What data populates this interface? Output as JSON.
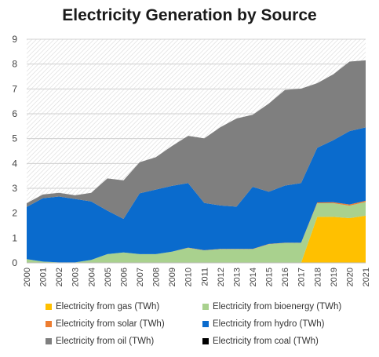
{
  "chart_data": {
    "type": "area",
    "stacked": true,
    "title": "Electricity Generation by Source",
    "xlabel": "",
    "ylabel": "",
    "ylim": [
      0,
      9
    ],
    "yticks": [
      "0",
      "1",
      "2",
      "3",
      "4",
      "5",
      "6",
      "7",
      "8",
      "9"
    ],
    "categories": [
      "2000",
      "2001",
      "2002",
      "2003",
      "2004",
      "2005",
      "2006",
      "2007",
      "2008",
      "2009",
      "2010",
      "2011",
      "2012",
      "2013",
      "2014",
      "2015",
      "2016",
      "2017",
      "2018",
      "2019",
      "2020",
      "2021"
    ],
    "grid": true,
    "legend_position": "bottom",
    "series": [
      {
        "name": "Electricity from gas (TWh)",
        "color": "#FFC000",
        "values": [
          0,
          0,
          0,
          0,
          0,
          0,
          0,
          0,
          0,
          0,
          0,
          0,
          0,
          0,
          0,
          0,
          0,
          0,
          1.85,
          1.85,
          1.8,
          1.9
        ]
      },
      {
        "name": "Electricity from bioenergy (TWh)",
        "color": "#A9D18E",
        "values": [
          0.15,
          0.05,
          0.02,
          0.02,
          0.12,
          0.35,
          0.42,
          0.35,
          0.35,
          0.45,
          0.6,
          0.5,
          0.55,
          0.55,
          0.55,
          0.75,
          0.8,
          0.8,
          0.55,
          0.55,
          0.5,
          0.55
        ]
      },
      {
        "name": "Electricity from solar (TWh)",
        "color": "#ED7D31",
        "values": [
          0,
          0,
          0,
          0,
          0,
          0,
          0,
          0,
          0,
          0,
          0.01,
          0.01,
          0.01,
          0.01,
          0.01,
          0.01,
          0.01,
          0.01,
          0.03,
          0.04,
          0.05,
          0.05
        ]
      },
      {
        "name": "Electricity from hydro (TWh)",
        "color": "#0A6BCD",
        "values": [
          2.1,
          2.55,
          2.65,
          2.55,
          2.35,
          1.75,
          1.35,
          2.45,
          2.6,
          2.65,
          2.6,
          1.9,
          1.75,
          1.7,
          2.5,
          2.1,
          2.3,
          2.4,
          2.2,
          2.5,
          2.95,
          2.95
        ]
      },
      {
        "name": "Electricity from oil (TWh)",
        "color": "#7F7F7F",
        "values": [
          0.15,
          0.15,
          0.15,
          0.15,
          0.35,
          1.3,
          1.55,
          1.25,
          1.3,
          1.6,
          1.9,
          2.6,
          3.15,
          3.55,
          2.9,
          3.55,
          3.85,
          3.8,
          2.6,
          2.65,
          2.8,
          2.7
        ]
      },
      {
        "name": "Electricity from coal (TWh)",
        "color": "#000000",
        "values": [
          0,
          0,
          0,
          0,
          0,
          0,
          0,
          0,
          0,
          0,
          0,
          0,
          0,
          0,
          0,
          0,
          0,
          0,
          0,
          0,
          0,
          0
        ]
      }
    ]
  }
}
